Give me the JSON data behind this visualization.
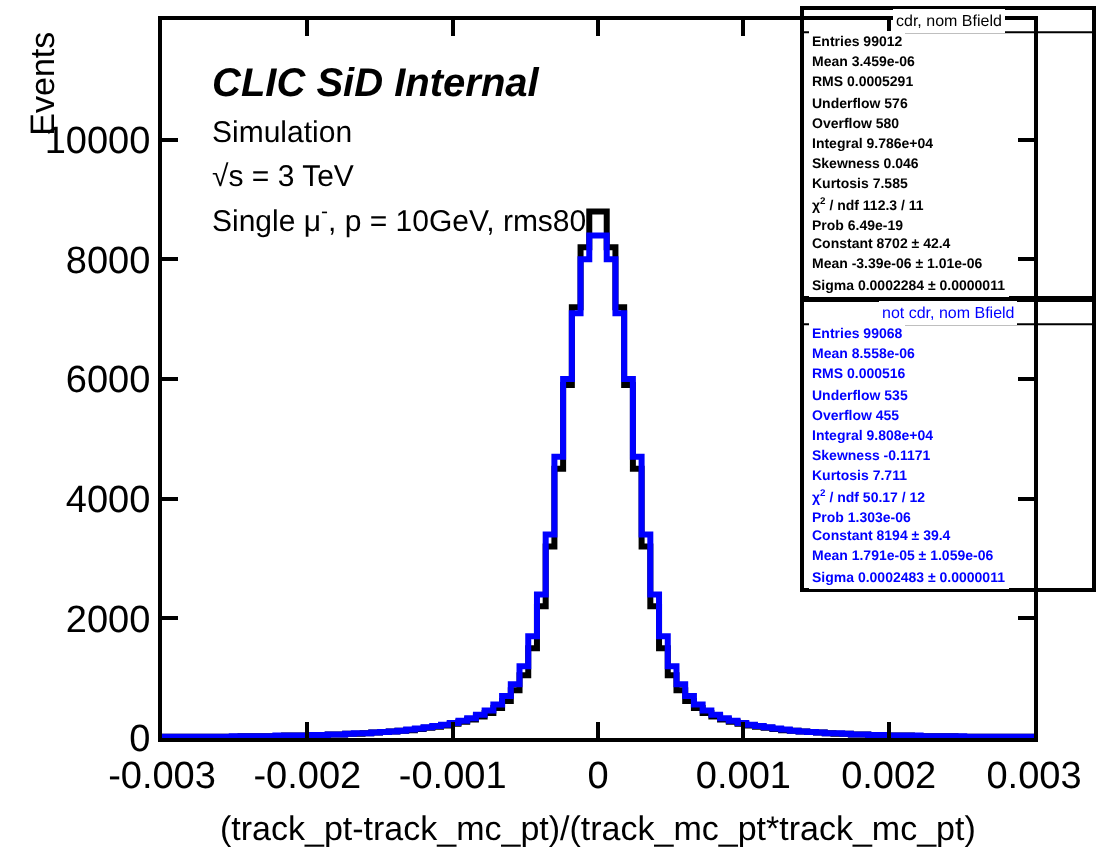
{
  "chart_data": {
    "type": "histogram",
    "xlabel": "(track_pt-track_mc_pt)/(track_mc_pt*track_mc_pt)",
    "ylabel": "Events",
    "bins": [
      -0.003,
      -0.00294,
      -0.00288,
      -0.00282,
      -0.00276,
      -0.0027,
      -0.00264,
      -0.00258,
      -0.00252,
      -0.00246,
      -0.0024,
      -0.00234,
      -0.00228,
      -0.00222,
      -0.00216,
      -0.0021,
      -0.00204,
      -0.00198,
      -0.00192,
      -0.00186,
      -0.0018,
      -0.00174,
      -0.00168,
      -0.00162,
      -0.00156,
      -0.0015,
      -0.00144,
      -0.00138,
      -0.00132,
      -0.00126,
      -0.0012,
      -0.00114,
      -0.00108,
      -0.00102,
      -0.00096,
      -0.0009,
      -0.00084,
      -0.00078,
      -0.00072,
      -0.00066,
      -0.0006,
      -0.00054,
      -0.00048,
      -0.00042,
      -0.00036,
      -0.0003,
      -0.00024,
      -0.00018,
      -0.00012,
      -6e-05,
      0,
      6e-05,
      0.00012,
      0.00018,
      0.00024,
      0.0003,
      0.00036,
      0.00042,
      0.00048,
      0.00054,
      0.0006,
      0.00066,
      0.00072,
      0.00078,
      0.00084,
      0.0009,
      0.00096,
      0.00102,
      0.00108,
      0.00114,
      0.0012,
      0.00126,
      0.00132,
      0.00138,
      0.00144,
      0.0015,
      0.00156,
      0.00162,
      0.00168,
      0.00174,
      0.0018,
      0.00186,
      0.00192,
      0.00198,
      0.00204,
      0.0021,
      0.00216,
      0.00222,
      0.00228,
      0.00234,
      0.0024,
      0.00246,
      0.00252,
      0.00258,
      0.00264,
      0.0027,
      0.00276,
      0.00282,
      0.00288,
      0.00294,
      0.003
    ],
    "series": [
      {
        "name": "cdr, nom Bfield",
        "color": "#000000",
        "values": [
          20,
          20,
          20,
          20,
          20,
          20,
          20,
          20,
          20,
          30,
          30,
          30,
          30,
          30,
          40,
          40,
          40,
          50,
          50,
          60,
          60,
          70,
          70,
          80,
          90,
          100,
          110,
          120,
          130,
          150,
          170,
          190,
          210,
          240,
          270,
          310,
          360,
          420,
          500,
          620,
          800,
          1050,
          1500,
          2200,
          3200,
          4500,
          5900,
          7200,
          8200,
          8800,
          8800,
          8200,
          7200,
          5900,
          4500,
          3200,
          2200,
          1500,
          1050,
          800,
          620,
          500,
          420,
          360,
          310,
          270,
          240,
          210,
          190,
          170,
          150,
          130,
          120,
          110,
          100,
          90,
          80,
          70,
          70,
          60,
          60,
          50,
          50,
          40,
          40,
          40,
          30,
          30,
          30,
          30,
          30,
          20,
          20,
          20,
          20,
          20,
          20,
          20,
          20,
          20
        ]
      },
      {
        "name": "not cdr, nom Bfield",
        "color": "#0000ff",
        "values": [
          20,
          20,
          20,
          20,
          20,
          20,
          20,
          20,
          30,
          30,
          30,
          30,
          30,
          40,
          40,
          40,
          40,
          50,
          50,
          60,
          60,
          70,
          80,
          80,
          90,
          100,
          110,
          120,
          140,
          160,
          180,
          200,
          220,
          250,
          290,
          330,
          390,
          460,
          560,
          700,
          900,
          1200,
          1700,
          2400,
          3400,
          4700,
          6000,
          7100,
          8000,
          8400,
          8400,
          8000,
          7100,
          6000,
          4700,
          3400,
          2400,
          1700,
          1200,
          900,
          700,
          560,
          460,
          390,
          330,
          290,
          250,
          220,
          200,
          180,
          160,
          140,
          120,
          110,
          100,
          90,
          80,
          80,
          70,
          60,
          60,
          50,
          50,
          40,
          40,
          40,
          40,
          30,
          30,
          30,
          30,
          30,
          20,
          20,
          20,
          20,
          20,
          20,
          20,
          20
        ]
      }
    ],
    "xlim": [
      -0.003,
      0.003
    ],
    "xticks": [
      {
        "value": -0.003,
        "label": "-0.003"
      },
      {
        "value": -0.002,
        "label": "-0.002"
      },
      {
        "value": -0.001,
        "label": "-0.001"
      },
      0,
      {
        "value": 0.001,
        "label": "0.001"
      },
      {
        "value": 0.002,
        "label": "0.002"
      },
      {
        "value": 0.003,
        "label": "0.003"
      }
    ],
    "ylim": [
      0,
      12000
    ],
    "yticks": [
      0,
      2000,
      4000,
      6000,
      8000,
      10000
    ],
    "line_style": "solid",
    "marker": "none",
    "annotations": [
      "CLIC SiD Internal",
      "Simulation",
      "√s = 3 TeV",
      "Single μ$^{-}$, p = 10GeV, rms80",
      "Entries 99012",
      "Mean 3.459e-06",
      "RMS 0.0005291",
      "Underflow 576",
      "Overflow 580",
      "Integral 9.786e+04",
      "Skewness 0.046",
      "Kurtosis 7.585",
      "χ$^{2}$ / ndf 112.3 / 11",
      "Prob 6.49e-19",
      "Constant 8702 ± 42.4",
      "Mean -3.39e-06 ± 1.01e-06",
      "Sigma 0.0002284 ± 0.0000011",
      "Entries 99068",
      "Mean 8.558e-06",
      "RMS 0.000516",
      "Underflow 535",
      "Overflow 455",
      "Integral 9.808e+04",
      "Skewness -0.1171",
      "Kurtosis 7.711",
      "χ$^{2}$ / ndf 50.17 / 12",
      "Prob 1.303e-06",
      "Constant 8194 ± 39.4",
      "Mean 1.791e-05 ± 1.059e-06",
      "Sigma 0.0002483 ± 0.0000011"
    ]
  }
}
